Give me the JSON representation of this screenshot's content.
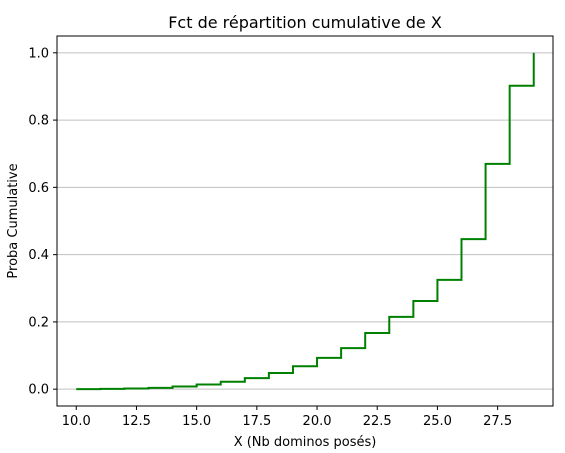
{
  "chart_data": {
    "type": "line",
    "step": "post",
    "title": "Fct de répartition cumulative de X",
    "xlabel": "X (Nb dominos posés)",
    "ylabel": "Proba Cumulative",
    "xlim": [
      9.2,
      29.8
    ],
    "ylim": [
      -0.05,
      1.05
    ],
    "x_ticks": [
      "10.0",
      "12.5",
      "15.0",
      "17.5",
      "20.0",
      "22.5",
      "25.0",
      "27.5"
    ],
    "y_ticks": [
      "0.0",
      "0.2",
      "0.4",
      "0.6",
      "0.8",
      "1.0"
    ],
    "grid": "y",
    "line_color": "#008000",
    "grid_color": "#c0c0c0",
    "series": [
      {
        "x": [
          10,
          11,
          12,
          13,
          14,
          15,
          16,
          17,
          18,
          19,
          20,
          21,
          22,
          23,
          24,
          25,
          26,
          27,
          28,
          29
        ],
        "y": [
          0.0,
          0.001,
          0.002,
          0.004,
          0.008,
          0.014,
          0.022,
          0.033,
          0.048,
          0.068,
          0.093,
          0.122,
          0.167,
          0.215,
          0.262,
          0.325,
          0.446,
          0.67,
          0.902,
          1.0
        ]
      }
    ]
  }
}
